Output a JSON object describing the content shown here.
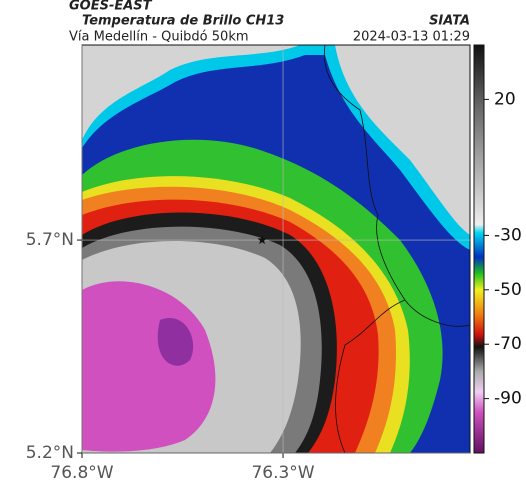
{
  "header": {
    "agency": "GOES-EAST",
    "title": "Temperatura de Brillo CH13",
    "brand": "SIATA",
    "subtitle": "Vía Medellín - Quibdó 50km",
    "timestamp": "2024-03-13 01:29"
  },
  "map": {
    "xlim": [
      -76.8,
      -75.835
    ],
    "ylim": [
      5.2,
      6.158
    ],
    "xticks": [
      {
        "value": -76.8,
        "label": "76.8°W"
      },
      {
        "value": -76.3,
        "label": "76.3°W"
      }
    ],
    "yticks": [
      {
        "value": 5.2,
        "label": "5.2°N"
      },
      {
        "value": 5.7,
        "label": "5.7°N"
      }
    ],
    "grid": true,
    "marker": {
      "lon": -76.352,
      "lat": 5.7
    }
  },
  "colorbar": {
    "lim": [
      40,
      -110
    ],
    "ticks": [
      20,
      -30,
      -50,
      -70,
      -90
    ]
  }
}
